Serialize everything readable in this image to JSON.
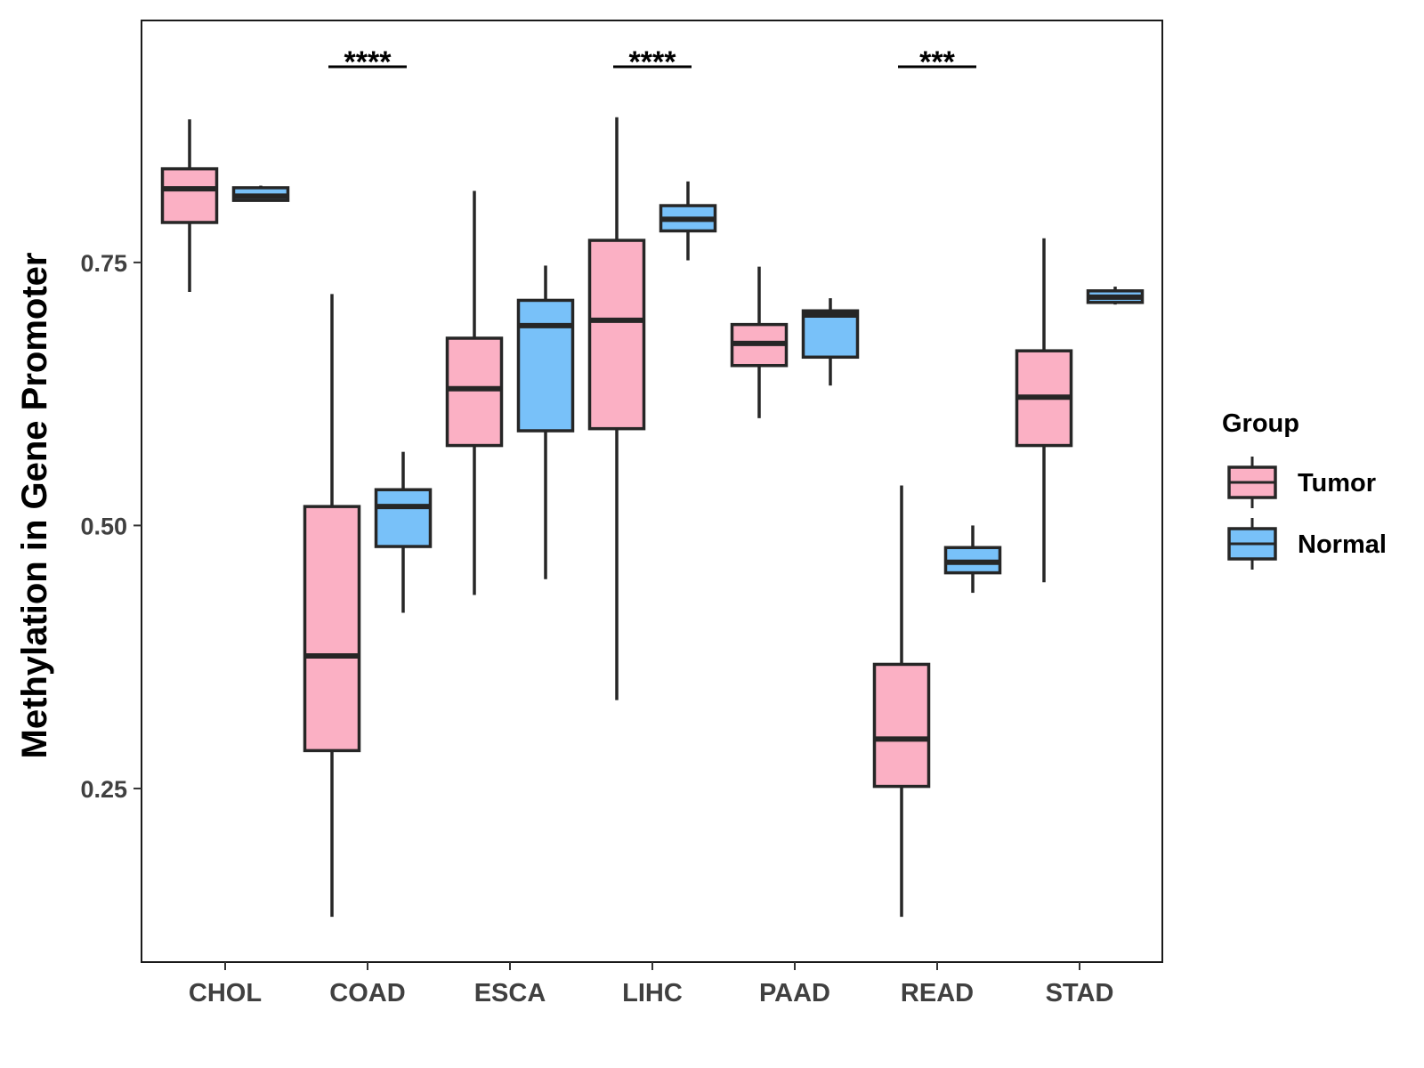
{
  "chart_data": {
    "type": "boxplot",
    "title": "",
    "xlabel": "",
    "ylabel": "Methylation in Gene Promoter",
    "ylim": [
      0.085,
      0.98
    ],
    "yticks": [
      {
        "value": 0.25,
        "label": "0.25"
      },
      {
        "value": 0.5,
        "label": "0.50"
      },
      {
        "value": 0.75,
        "label": "0.75"
      }
    ],
    "categories": [
      "CHOL",
      "COAD",
      "ESCA",
      "LIHC",
      "PAAD",
      "READ",
      "STAD"
    ],
    "legend": {
      "title": "Group",
      "position": "right",
      "entries": [
        {
          "name": "Tumor",
          "color": "#FBB0C4"
        },
        {
          "name": "Normal",
          "color": "#78C1F9"
        }
      ]
    },
    "series": [
      {
        "name": "Tumor",
        "color": "#FBB0C4",
        "boxes": [
          {
            "category": "CHOL",
            "min": 0.722,
            "q1": 0.788,
            "median": 0.82,
            "q3": 0.839,
            "max": 0.886
          },
          {
            "category": "COAD",
            "min": 0.128,
            "q1": 0.286,
            "median": 0.376,
            "q3": 0.518,
            "max": 0.72
          },
          {
            "category": "ESCA",
            "min": 0.434,
            "q1": 0.576,
            "median": 0.63,
            "q3": 0.678,
            "max": 0.818
          },
          {
            "category": "LIHC",
            "min": 0.334,
            "q1": 0.592,
            "median": 0.695,
            "q3": 0.771,
            "max": 0.888
          },
          {
            "category": "PAAD",
            "min": 0.602,
            "q1": 0.652,
            "median": 0.673,
            "q3": 0.691,
            "max": 0.746
          },
          {
            "category": "READ",
            "min": 0.128,
            "q1": 0.252,
            "median": 0.297,
            "q3": 0.368,
            "max": 0.538
          },
          {
            "category": "STAD",
            "min": 0.446,
            "q1": 0.576,
            "median": 0.622,
            "q3": 0.666,
            "max": 0.773
          }
        ]
      },
      {
        "name": "Normal",
        "color": "#78C1F9",
        "boxes": [
          {
            "category": "CHOL",
            "min": 0.808,
            "q1": 0.809,
            "median": 0.813,
            "q3": 0.821,
            "max": 0.823
          },
          {
            "category": "COAD",
            "min": 0.417,
            "q1": 0.48,
            "median": 0.518,
            "q3": 0.534,
            "max": 0.57
          },
          {
            "category": "ESCA",
            "min": 0.449,
            "q1": 0.59,
            "median": 0.69,
            "q3": 0.714,
            "max": 0.747
          },
          {
            "category": "LIHC",
            "min": 0.752,
            "q1": 0.78,
            "median": 0.791,
            "q3": 0.804,
            "max": 0.827
          },
          {
            "category": "PAAD",
            "min": 0.633,
            "q1": 0.66,
            "median": 0.7,
            "q3": 0.704,
            "max": 0.716
          },
          {
            "category": "READ",
            "min": 0.436,
            "q1": 0.455,
            "median": 0.465,
            "q3": 0.479,
            "max": 0.5
          },
          {
            "category": "STAD",
            "min": 0.71,
            "q1": 0.712,
            "median": 0.717,
            "q3": 0.723,
            "max": 0.727
          }
        ]
      }
    ],
    "annotations": [
      {
        "category": "COAD",
        "text": "****"
      },
      {
        "category": "LIHC",
        "text": "****"
      },
      {
        "category": "READ",
        "text": "***"
      }
    ]
  }
}
